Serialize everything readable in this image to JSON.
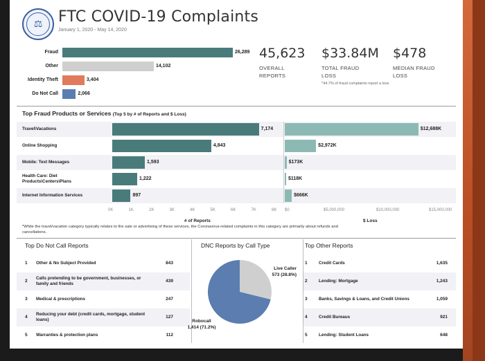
{
  "header": {
    "title": "FTC COVID-19 Complaints",
    "date_range": "January 1, 2020 - May 14, 2020",
    "seal_icon": "ftc-seal-icon"
  },
  "colors": {
    "fraud": "#4a7b7b",
    "other": "#cfcfcf",
    "identity_theft": "#e07a5a",
    "do_not_call": "#5b7db0",
    "products_reports": "#4a7b7b",
    "products_loss": "#8cb9b4",
    "pie_robocall": "#5b7db0",
    "pie_live": "#cfcfcf"
  },
  "kpis": [
    {
      "value": "45,623",
      "label": "OVERALL REPORTS"
    },
    {
      "value": "$33.84M",
      "label": "TOTAL FRAUD LOSS",
      "note": "*44.7% of fraud complaints report a loss"
    },
    {
      "value": "$478",
      "label": "MEDIAN FRAUD LOSS"
    }
  ],
  "section_products": {
    "title": "Top Fraud Products or Services",
    "subtitle": "(Top 5 by # of Reports and $ Loss)",
    "reports_axis_title": "# of Reports",
    "loss_axis_title": "$ Loss",
    "reports_ticks": [
      "0K",
      "1K",
      "2K",
      "3K",
      "4K",
      "5K",
      "6K",
      "7K",
      "8K"
    ],
    "loss_ticks": [
      "$0",
      "$5,000,000",
      "$10,000,000",
      "$15,000,000"
    ],
    "footnote": "*While the travel/vacation category typically relates to the sale or advertising of these services, the Coronavirus-related complaints in this category are primarily about refunds and cancellations."
  },
  "chart_data": [
    {
      "type": "bar",
      "orientation": "horizontal",
      "categories": [
        "Fraud",
        "Other",
        "Identity Theft",
        "Do Not Call"
      ],
      "values": [
        26289,
        14102,
        3404,
        2066
      ],
      "labels": [
        "26,289",
        "14,102",
        "3,404",
        "2,066"
      ],
      "xlim": [
        0,
        26289
      ]
    },
    {
      "type": "bar",
      "orientation": "horizontal",
      "categories": [
        "Travel\\Vacations",
        "Online Shopping",
        "Mobile: Text Messages",
        "Health Care: Diet Products\\Centers\\Plans",
        "Internet Information Services"
      ],
      "series": [
        {
          "values": [
            7174,
            4843,
            1593,
            1222,
            897
          ],
          "labels": [
            "7,174",
            "4,843",
            "1,593",
            "1,222",
            "897"
          ]
        },
        {
          "values": [
            12688000,
            2972000,
            173000,
            118000,
            666000
          ],
          "labels": [
            "$12,688K",
            "$2,972K",
            "$173K",
            "$118K",
            "$666K"
          ]
        }
      ],
      "xlabel": "# of Reports",
      "xlabel2": "$ Loss",
      "xlim": [
        0,
        8000
      ],
      "xlim2": [
        0,
        15000000
      ]
    },
    {
      "type": "pie",
      "title": "DNC Reports by Call Type",
      "categories": [
        "Robocall",
        "Live Caller"
      ],
      "values": [
        1414,
        573
      ],
      "labels": [
        "1,414 (71.2%)",
        "573 (28.8%)"
      ]
    }
  ],
  "dnc_table": {
    "title": "Top Do Not Call Reports",
    "rows": [
      {
        "num": "1",
        "label": "Other & No Subject Provided",
        "value": "843"
      },
      {
        "num": "2",
        "label": "Calls pretending to be government, businesses, or family and friends",
        "value": "439"
      },
      {
        "num": "3",
        "label": "Medical  & prescriptions",
        "value": "247"
      },
      {
        "num": "4",
        "label": "Reducing your debt (credit cards, mortgage, student loans)",
        "value": "127"
      },
      {
        "num": "5",
        "label": "Warranties  & protection plans",
        "value": "112"
      }
    ]
  },
  "other_table": {
    "title": "Top Other Reports",
    "rows": [
      {
        "num": "1",
        "label": "Credit Cards",
        "value": "1,635"
      },
      {
        "num": "2",
        "label": "Lending: Mortgage",
        "value": "1,243"
      },
      {
        "num": "3",
        "label": "Banks, Savings & Loans, and Credit Unions",
        "value": "1,059"
      },
      {
        "num": "4",
        "label": "Credit Bureaus",
        "value": "921"
      },
      {
        "num": "5",
        "label": "Lending: Student Loans",
        "value": "648"
      }
    ]
  }
}
